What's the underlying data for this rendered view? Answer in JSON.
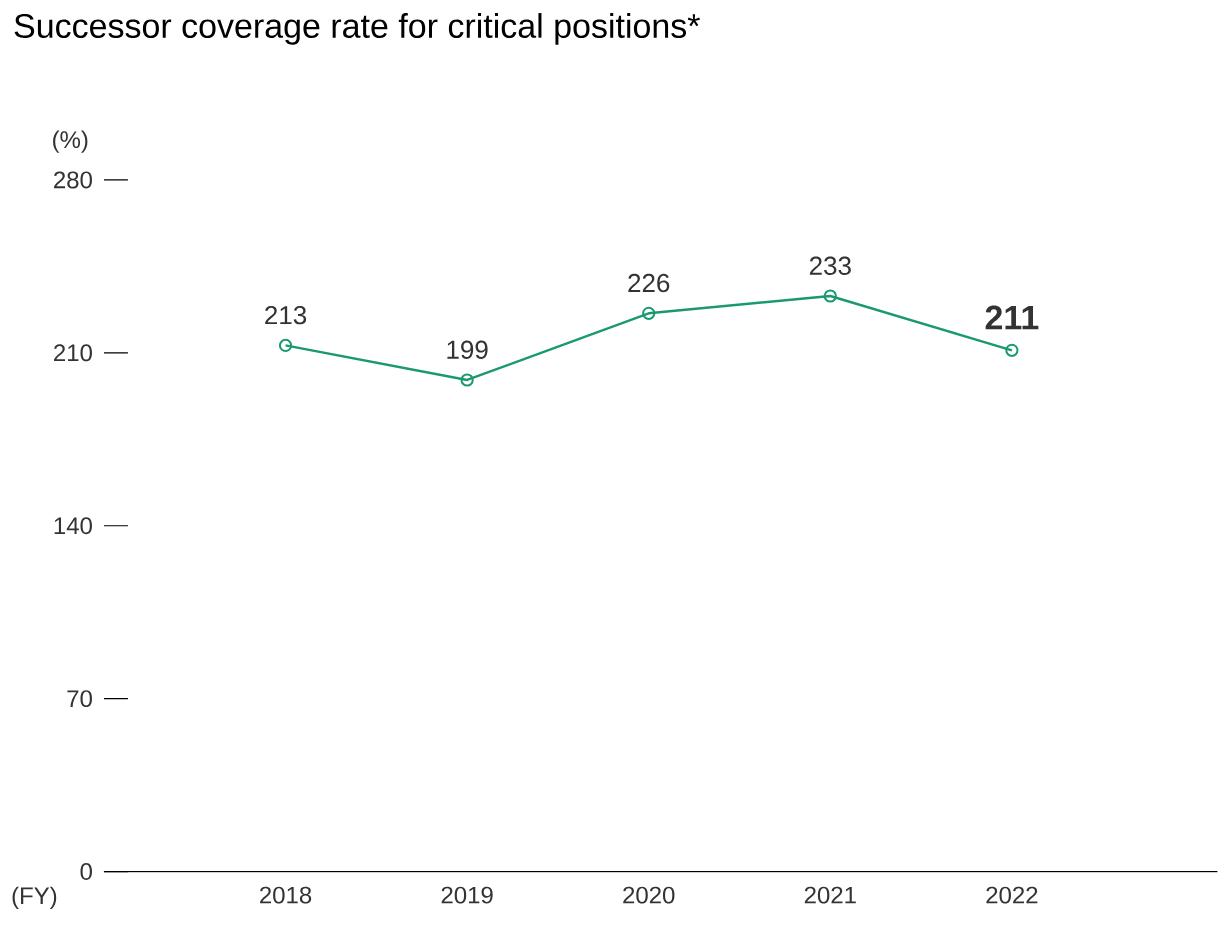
{
  "chart_data": {
    "type": "line",
    "title": "Successor coverage rate for critical positions*",
    "xlabel": "(FY)",
    "ylabel": "(%)",
    "categories": [
      "2018",
      "2019",
      "2020",
      "2021",
      "2022"
    ],
    "values": [
      213,
      199,
      226,
      233,
      211
    ],
    "value_labels": [
      "213",
      "199",
      "226",
      "233",
      "**211**"
    ],
    "color": "#1a9a6c",
    "marker": "circle",
    "ylim": [
      0,
      280
    ],
    "yticks": [
      0,
      70,
      140,
      210,
      280
    ]
  }
}
